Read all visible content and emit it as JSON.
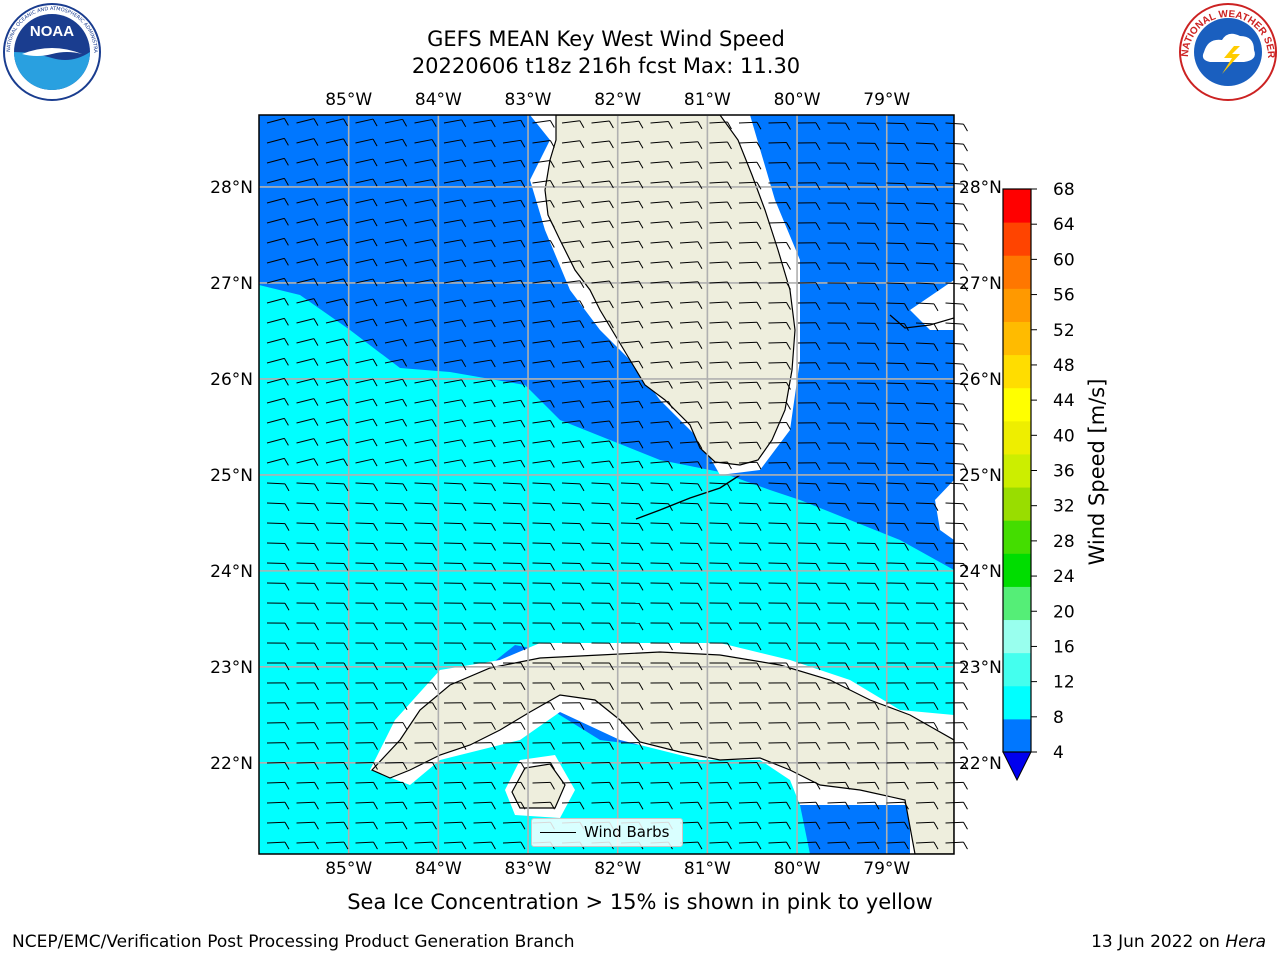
{
  "header": {
    "title_line1": "GEFS MEAN Key West Wind Speed",
    "title_line2": "20220606 t18z 216h fcst   Max: 11.30"
  },
  "logos": {
    "left": "NOAA",
    "left_ring_text": "NATIONAL OCEANIC AND ATMOSPHERIC ADMINISTRATION · U.S. DEPARTMENT OF COMMERCE",
    "right_ring_text": "NATIONAL WEATHER SERVICE"
  },
  "map": {
    "lon_labels": [
      "85°W",
      "84°W",
      "83°W",
      "82°W",
      "81°W",
      "80°W",
      "79°W"
    ],
    "lat_labels": [
      "28°N",
      "27°N",
      "26°N",
      "25°N",
      "24°N",
      "23°N",
      "22°N"
    ],
    "lon_values": [
      -85,
      -84,
      -83,
      -82,
      -81,
      -80,
      -79
    ],
    "lat_values": [
      28,
      27,
      26,
      25,
      24,
      23,
      22
    ],
    "extent": {
      "lon": [
        -86.0,
        -78.25
      ],
      "lat": [
        21.05,
        28.75
      ]
    },
    "colors": {
      "land": "#eeeedd",
      "grid": "#b0b0b0",
      "wind_4_8": "#0077ff",
      "wind_8_12": "#00ffff"
    },
    "legend_label": "Wind Barbs"
  },
  "colorbar": {
    "title": "Wind Speed [m/s]",
    "ticks": [
      "68",
      "64",
      "60",
      "56",
      "52",
      "48",
      "44",
      "40",
      "36",
      "32",
      "28",
      "24",
      "20",
      "16",
      "12",
      "8",
      "4"
    ],
    "colors_bottom_to_top": [
      "#0077ff",
      "#00ffff",
      "#44ffee",
      "#99ffee",
      "#55ee77",
      "#00dd00",
      "#44dd00",
      "#99dd00",
      "#ccee00",
      "#eeee00",
      "#ffff00",
      "#ffdd00",
      "#ffbb00",
      "#ff9900",
      "#ff7700",
      "#ff4400",
      "#ff0000"
    ],
    "extend_color": "#0000ee"
  },
  "caption": "Sea Ice Concentration > 15% is shown in pink to yellow",
  "footer": {
    "left": "NCEP/EMC/Verification Post Processing Product Generation Branch",
    "right_prefix": "13 Jun 2022 on ",
    "right_host": "Hera"
  }
}
